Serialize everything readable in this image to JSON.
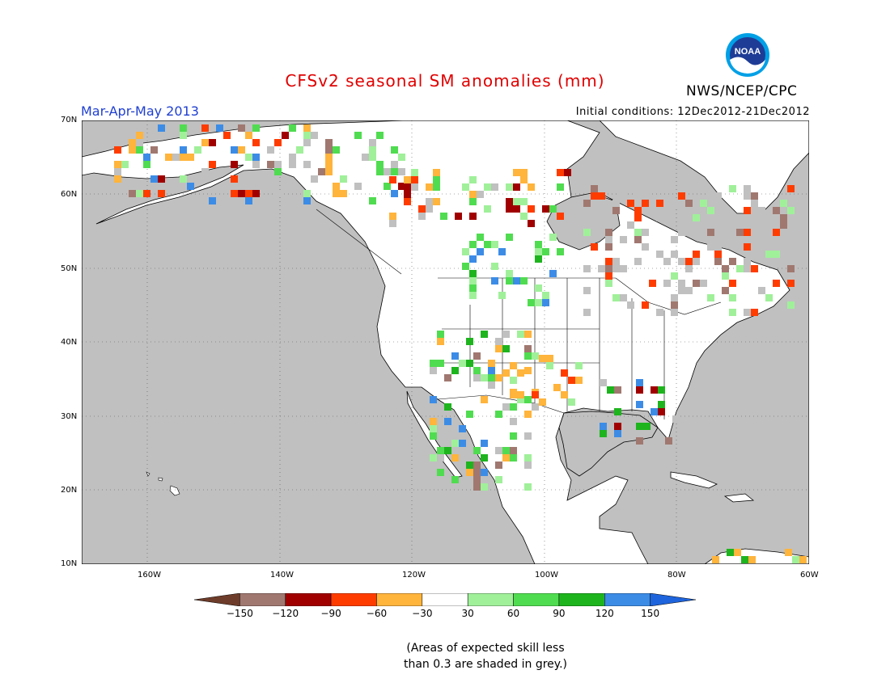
{
  "header": {
    "title": "CFSv2 seasonal SM anomalies (mm)",
    "period": "Mar-Apr-May 2013",
    "initial_conditions": "Initial conditions: 12Dec2012-21Dec2012",
    "organization": "NWS/NCEP/CPC",
    "logo_text": "NOAA"
  },
  "map": {
    "lat_labels": [
      "70N",
      "60N",
      "50N",
      "40N",
      "30N",
      "20N",
      "10N"
    ],
    "lon_labels": [
      "160W",
      "140W",
      "120W",
      "100W",
      "80W",
      "60W"
    ],
    "colors": {
      "ocean": "#c0c0c0",
      "land": "#ffffff",
      "low_skill": "#c0c0c0"
    }
  },
  "legend": {
    "tick_labels": [
      "-150",
      "-120",
      "-90",
      "-60",
      "-30",
      "30",
      "60",
      "90",
      "120",
      "150"
    ],
    "bins": [
      {
        "label": "< -150",
        "color": "#6e3c2a"
      },
      {
        "label": "-150 to -120",
        "color": "#a07870"
      },
      {
        "label": "-120 to -90",
        "color": "#a00000"
      },
      {
        "label": "-90 to -60",
        "color": "#ff3c00"
      },
      {
        "label": "-60 to -30",
        "color": "#ffb43c"
      },
      {
        "label": "-30 to 30",
        "color": "#ffffff"
      },
      {
        "label": "30 to 60",
        "color": "#a0f09a"
      },
      {
        "label": "60 to 90",
        "color": "#50dc50"
      },
      {
        "label": "90 to 120",
        "color": "#1eb41e"
      },
      {
        "label": "120 to 150",
        "color": "#3c8ce6"
      },
      {
        "label": "> 150",
        "color": "#1e64dc"
      }
    ]
  },
  "footnote": {
    "line1": "(Areas of expected skill less",
    "line2": "than 0.3 are shaded in grey.)"
  }
}
